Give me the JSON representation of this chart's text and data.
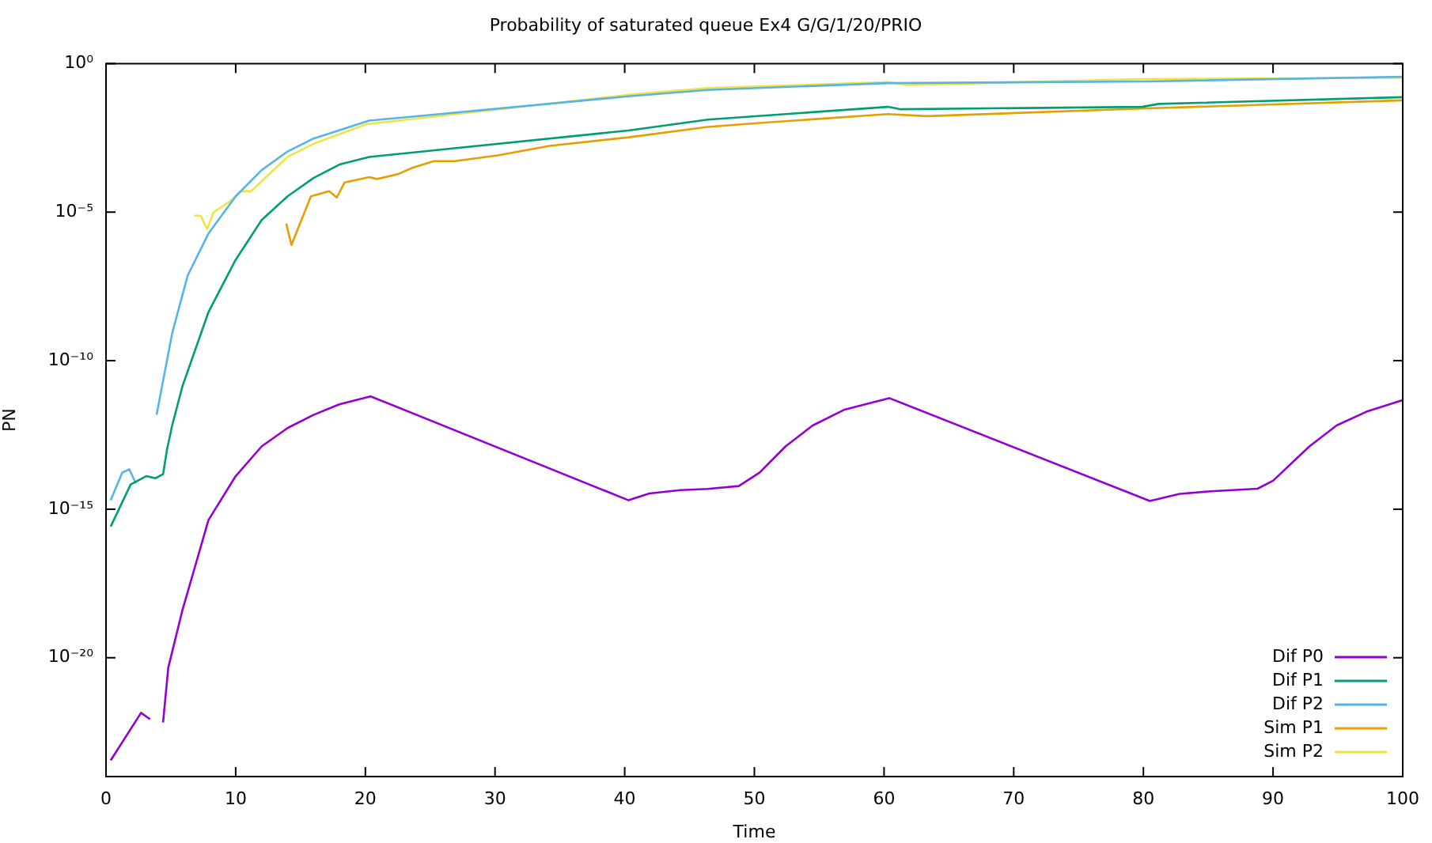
{
  "chart_data": {
    "type": "line",
    "title": "Probability of saturated queue Ex4 G/G/1/20/PRIO",
    "xlabel": "Time",
    "ylabel": "PN",
    "xlim": [
      0,
      100
    ],
    "xticks": [
      0,
      10,
      20,
      30,
      40,
      50,
      60,
      70,
      80,
      90,
      100
    ],
    "ylim": [
      1e-24,
      1
    ],
    "yticks": [
      {
        "value": 1,
        "label": "10⁰"
      },
      {
        "value": 1e-05,
        "label": "10⁻⁵"
      },
      {
        "value": 1e-10,
        "label": "10⁻¹⁰"
      },
      {
        "value": 1e-15,
        "label": "10⁻¹⁵"
      },
      {
        "value": 1e-20,
        "label": "10⁻²⁰"
      }
    ],
    "log": "y",
    "grid": false,
    "legend": "bottom right",
    "marker": "none",
    "line_style": "solid",
    "series": [
      {
        "name": "Dif P0",
        "color": "#9400d3",
        "x": [
          0.36,
          2.7,
          3.4,
          3.9,
          4.4,
          4.8,
          5.9,
          7.9,
          10,
          12,
          14,
          16,
          18,
          20.4,
          40.3,
          41.9,
          44.3,
          46.4,
          48.8,
          50.4,
          52.4,
          54.5,
          56.9,
          60.4,
          80.5,
          82.8,
          85.2,
          88.8,
          90,
          92.8,
          94.9,
          97.3,
          100
        ],
        "values": [
          3.5e-24,
          1.4e-22,
          8.5e-23,
          null,
          6.6e-23,
          4.6e-21,
          4.1e-19,
          4.3e-16,
          1.3e-14,
          1.3e-13,
          5.4e-13,
          1.5e-12,
          3.4e-12,
          6.3e-12,
          2e-15,
          3.4e-15,
          4.4e-15,
          4.8e-15,
          6e-15,
          1.7e-14,
          1.3e-13,
          6.6e-13,
          2.2e-12,
          5.5e-12,
          1.9e-15,
          3.3e-15,
          4e-15,
          4.9e-15,
          9.1e-15,
          1.3e-13,
          6.6e-13,
          2e-12,
          4.7e-12
        ]
      },
      {
        "name": "Dif P1",
        "color": "#009e73",
        "x": [
          0.36,
          1.9,
          3.1,
          3.8,
          4.4,
          4.7,
          5.1,
          5.9,
          7.9,
          10,
          12,
          14,
          16,
          18,
          20.3,
          40.3,
          46.4,
          60.3,
          61.3,
          79.9,
          81.2,
          100
        ],
        "values": [
          2.6e-16,
          6.8e-15,
          1.3e-14,
          1.1e-14,
          1.5e-14,
          1e-13,
          6.6e-13,
          1.4e-11,
          4.3e-09,
          2.5e-07,
          5.4e-06,
          3.4e-05,
          0.00014,
          0.0004,
          0.00072,
          0.0056,
          0.013,
          0.035,
          0.029,
          0.035,
          0.044,
          0.074
        ]
      },
      {
        "name": "Dif P2",
        "color": "#56b4e9",
        "x": [
          0.36,
          1.25,
          1.8,
          2.3,
          3.1,
          3.9,
          5.1,
          6.3,
          7.9,
          10,
          12,
          14,
          16,
          20.3,
          40.3,
          46.4,
          60.3,
          80.3,
          100
        ],
        "values": [
          2e-15,
          1.7e-14,
          2.2e-14,
          7.4e-15,
          null,
          1.5e-12,
          8.3e-10,
          7.4e-08,
          1.9e-06,
          3.4e-05,
          0.00026,
          0.0011,
          0.003,
          0.012,
          0.079,
          0.13,
          0.22,
          0.25,
          0.36
        ]
      },
      {
        "name": "Sim P1",
        "color": "#e69f00",
        "x": [
          13.9,
          14.3,
          15.8,
          17.2,
          17.8,
          18.4,
          20.3,
          20.9,
          22.5,
          23.7,
          25.3,
          26.9,
          30.2,
          34.2,
          40.3,
          46.4,
          50.4,
          60.3,
          63.3,
          80.3,
          100
        ],
        "values": [
          4.1e-06,
          7.9e-07,
          3.4e-05,
          5.1e-05,
          3.1e-05,
          0.0001,
          0.00015,
          0.00013,
          0.00019,
          0.00032,
          0.00052,
          0.00052,
          0.00081,
          0.0017,
          0.0033,
          0.0074,
          0.01,
          0.02,
          0.017,
          0.031,
          0.058
        ]
      },
      {
        "name": "Sim P2",
        "color": "#f0e442",
        "x": [
          6.8,
          7.3,
          7.8,
          8.3,
          9.5,
          10.4,
          11.2,
          12.4,
          14,
          16,
          20.1,
          40.3,
          46.4,
          60.3,
          61.7,
          79.9,
          100
        ],
        "values": [
          7.6e-06,
          7.6e-06,
          2.7e-06,
          1e-05,
          2.2e-05,
          5.1e-05,
          5.1e-05,
          0.00016,
          0.00072,
          0.002,
          0.0091,
          0.089,
          0.15,
          0.24,
          0.19,
          0.3,
          0.33
        ]
      }
    ]
  }
}
